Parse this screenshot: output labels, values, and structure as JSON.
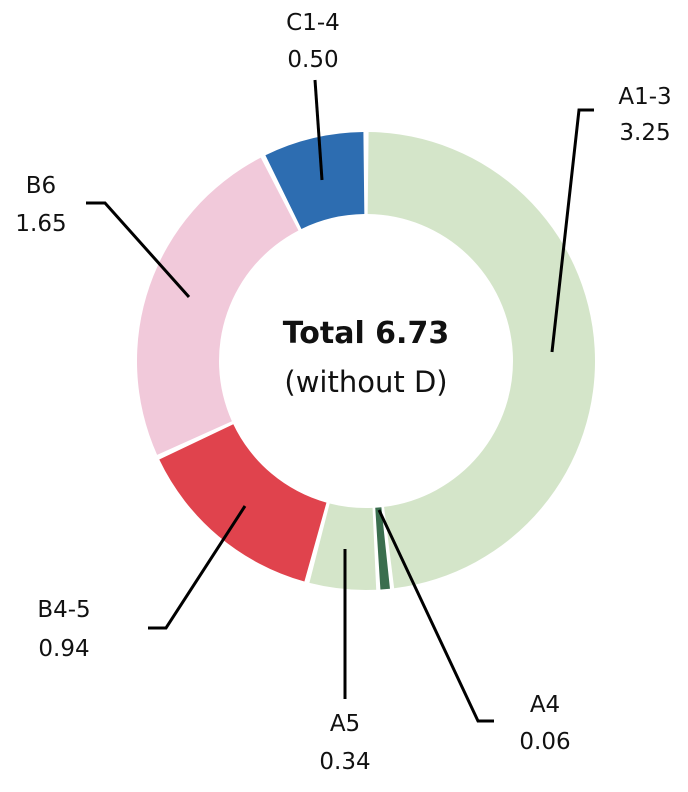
{
  "chart_data": {
    "type": "pie",
    "center_title": "Total 6.73",
    "center_subtitle": "(without D)",
    "slices": [
      {
        "name": "A1-3",
        "value": 3.25,
        "value_label": "3.25",
        "color": "#d4e5c9"
      },
      {
        "name": "A4",
        "value": 0.06,
        "value_label": "0.06",
        "color": "#3a6e4e"
      },
      {
        "name": "A5",
        "value": 0.34,
        "value_label": "0.34",
        "color": "#d4e5c9"
      },
      {
        "name": "B4-5",
        "value": 0.94,
        "value_label": "0.94",
        "color": "#e0434d"
      },
      {
        "name": "B6",
        "value": 1.65,
        "value_label": "1.65",
        "color": "#f1c9da"
      },
      {
        "name": "C1-4",
        "value": 0.5,
        "value_label": "0.50",
        "color": "#2d6db1"
      }
    ],
    "total": 6.73
  }
}
